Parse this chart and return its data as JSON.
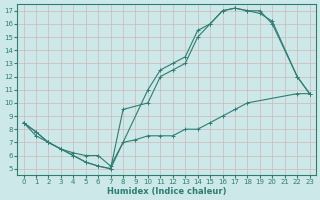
{
  "title": "",
  "xlabel": "Humidex (Indice chaleur)",
  "bg_color": "#cce8e8",
  "grid_color": "#c8dada",
  "line_color": "#2e7d72",
  "xlim": [
    -0.5,
    23.5
  ],
  "ylim": [
    4.5,
    17.5
  ],
  "xticks": [
    0,
    1,
    2,
    3,
    4,
    5,
    6,
    7,
    8,
    9,
    10,
    11,
    12,
    13,
    14,
    15,
    16,
    17,
    18,
    19,
    20,
    21,
    22,
    23
  ],
  "yticks": [
    5,
    6,
    7,
    8,
    9,
    10,
    11,
    12,
    13,
    14,
    15,
    16,
    17
  ],
  "lines": [
    {
      "x": [
        0,
        1,
        2,
        3,
        4,
        5,
        6,
        7,
        10,
        11,
        12,
        13,
        14,
        15,
        16,
        17,
        18,
        19,
        20,
        22,
        23
      ],
      "y": [
        8.5,
        7.5,
        7,
        6.5,
        6,
        5.5,
        5.2,
        5,
        11,
        12.5,
        13,
        13.5,
        15.5,
        16,
        17,
        17.2,
        17,
        16.8,
        16.2,
        12,
        10.7
      ]
    },
    {
      "x": [
        0,
        1,
        2,
        3,
        4,
        5,
        6,
        7,
        8,
        10,
        11,
        12,
        13,
        14,
        15,
        16,
        17,
        18,
        19,
        20,
        22,
        23
      ],
      "y": [
        8.5,
        7.8,
        7,
        6.5,
        6,
        5.5,
        5.2,
        5,
        9.5,
        10,
        12,
        12.5,
        13,
        15,
        16,
        17,
        17.2,
        17,
        17,
        16,
        12,
        10.7
      ]
    },
    {
      "x": [
        0,
        1,
        2,
        3,
        4,
        5,
        6,
        7,
        8,
        9,
        10,
        11,
        12,
        13,
        14,
        15,
        16,
        17,
        18,
        22,
        23
      ],
      "y": [
        8.5,
        7.8,
        7,
        6.5,
        6.2,
        6,
        6,
        5.2,
        7,
        7.2,
        7.5,
        7.5,
        7.5,
        8,
        8,
        8.5,
        9,
        9.5,
        10,
        10.7,
        10.7
      ]
    }
  ]
}
